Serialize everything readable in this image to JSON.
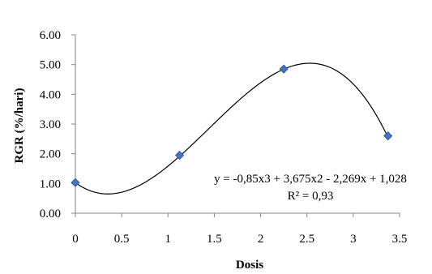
{
  "chart_data": {
    "type": "scatter",
    "title": "",
    "xlabel": "Dosis",
    "ylabel": "RGR (%/hari)",
    "xlim": [
      0,
      3.5
    ],
    "ylim": [
      0,
      6
    ],
    "x_ticks": [
      0,
      0.5,
      1,
      1.5,
      2,
      2.5,
      3,
      3.5
    ],
    "x_tick_labels": [
      "0",
      "0.5",
      "1",
      "1.5",
      "2",
      "2.5",
      "3",
      "3.5"
    ],
    "y_ticks": [
      0,
      1,
      2,
      3,
      4,
      5,
      6
    ],
    "y_tick_labels": [
      "0.00",
      "1.00",
      "2.00",
      "3.00",
      "4.00",
      "5.00",
      "6.00"
    ],
    "grid": false,
    "legend": "none",
    "marker_color": "#4472C4",
    "series": [
      {
        "x": [
          0,
          1.125,
          2.25,
          3.375
        ],
        "y": [
          1.03,
          1.95,
          4.85,
          2.6
        ]
      }
    ],
    "trendline": {
      "type": "polynomial",
      "coefficients": [
        1.028,
        -2.269,
        3.675,
        -0.85
      ],
      "color": "#000000"
    },
    "annotations": [
      "y = -0,85x3 + 3,675x2 - 2,269x + 1,028",
      "R² = 0,93"
    ]
  }
}
